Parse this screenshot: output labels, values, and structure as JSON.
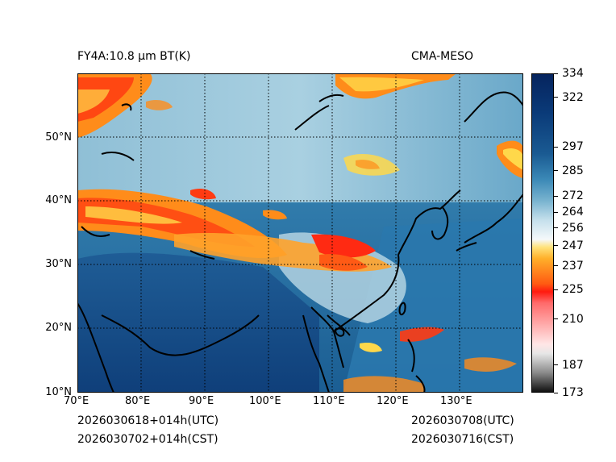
{
  "header": {
    "product_label": "FY4A:10.8 μm BT(K)",
    "model_label": "CMA-MESO"
  },
  "footer": {
    "init_utc": "2026030618+014h(UTC)",
    "init_cst": "2026030702+014h(CST)",
    "valid_utc": "2026030708(UTC)",
    "valid_cst": "2026030716(CST)"
  },
  "map": {
    "lon_range": [
      70,
      140
    ],
    "lat_range": [
      10,
      60
    ],
    "lon_ticks": [
      "70°E",
      "80°E",
      "90°E",
      "100°E",
      "110°E",
      "120°E",
      "130°E"
    ],
    "lat_ticks": [
      "10°N",
      "20°N",
      "30°N",
      "40°N",
      "50°N"
    ]
  },
  "colorbar": {
    "range": [
      173,
      334
    ],
    "ticks": [
      "334",
      "322",
      "297",
      "285",
      "272",
      "264",
      "256",
      "247",
      "237",
      "225",
      "210",
      "187",
      "173"
    ],
    "colors": {
      "cold_black": "#111111",
      "gray": "#bfbfbf",
      "red": "#ff1a10",
      "orange": "#ff8c1a",
      "yellow": "#ffd84a",
      "white": "#f5f8fa",
      "light_blue": "#9ec8dc",
      "mid_blue": "#2c7fb0",
      "deep_blue": "#06245e"
    }
  }
}
